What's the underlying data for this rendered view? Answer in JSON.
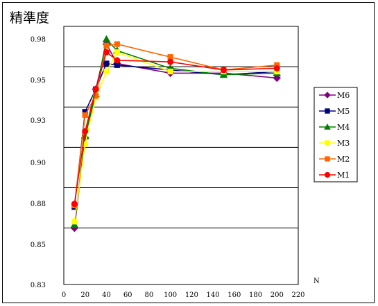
{
  "chart_data": {
    "type": "line",
    "title": "精準度",
    "xlabel": "N",
    "ylabel": "",
    "xlim": [
      0,
      220
    ],
    "ylim": [
      0.83,
      0.99
    ],
    "x_ticks": [
      "0",
      "20",
      "40",
      "60",
      "80",
      "100",
      "120",
      "140",
      "160",
      "180",
      "200",
      "220"
    ],
    "y_ticks": [
      "0.83",
      "0.85",
      "0.88",
      "0.90",
      "0.93",
      "0.95",
      "0.98"
    ],
    "grid": "horizontal",
    "legend_position": "right",
    "x": [
      10,
      20,
      30,
      40,
      50,
      100,
      150,
      200
    ],
    "series": [
      {
        "name": "M6",
        "color": "#800080",
        "marker": "diamond",
        "values": [
          0.865,
          0.921,
          0.951,
          0.979,
          0.967,
          0.961,
          0.961,
          0.958
        ]
      },
      {
        "name": "M5",
        "color": "#000080",
        "marker": "square",
        "values": [
          0.878,
          0.937,
          0.951,
          0.967,
          0.966,
          0.963,
          0.96,
          0.962
        ]
      },
      {
        "name": "M4",
        "color": "#008000",
        "marker": "triangle",
        "values": [
          0.867,
          0.922,
          0.948,
          0.982,
          0.975,
          0.964,
          0.96,
          0.961
        ]
      },
      {
        "name": "M3",
        "color": "#ffff00",
        "marker": "square",
        "values": [
          0.869,
          0.917,
          0.946,
          0.962,
          0.974,
          0.962,
          0.962,
          0.962
        ]
      },
      {
        "name": "M2",
        "color": "#ff6600",
        "marker": "square",
        "values": [
          0.879,
          0.935,
          0.947,
          0.978,
          0.979,
          0.971,
          0.963,
          0.966
        ]
      },
      {
        "name": "M1",
        "color": "#ff0000",
        "marker": "circle",
        "values": [
          0.88,
          0.925,
          0.951,
          0.974,
          0.969,
          0.968,
          0.963,
          0.964
        ]
      }
    ]
  }
}
